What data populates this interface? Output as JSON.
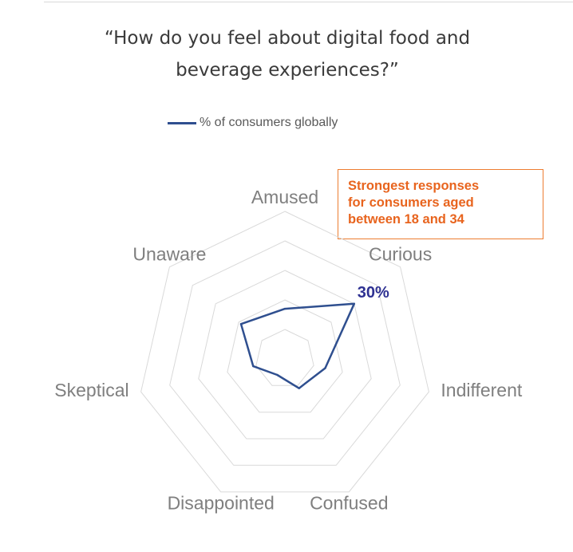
{
  "title": {
    "line1": "“How do you feel about digital food and",
    "line2": "beverage experiences?”"
  },
  "legend": {
    "label": "% of consumers globally",
    "color": "#2f4f8f"
  },
  "callout": {
    "line1": "Strongest responses",
    "line2": "for consumers aged",
    "line3": "between 18 and 34",
    "color": "#e8641e"
  },
  "chart_data": {
    "type": "radar",
    "title": "“How do you feel about digital food and beverage experiences?”",
    "axes": [
      "Amused",
      "Curious",
      "Indifferent",
      "Confused",
      "Disappointed",
      "Skeptical",
      "Unaware"
    ],
    "series": [
      {
        "name": "% of consumers globally",
        "values": [
          17,
          30,
          14,
          11,
          6,
          11,
          19
        ]
      }
    ],
    "rmax": 50,
    "grid_levels": [
      10,
      20,
      30,
      40,
      50
    ],
    "annotations": [
      {
        "axis": "Curious",
        "label": "30%"
      }
    ],
    "line_color": "#2f4f8f",
    "grid_color": "#d9d9d9"
  }
}
